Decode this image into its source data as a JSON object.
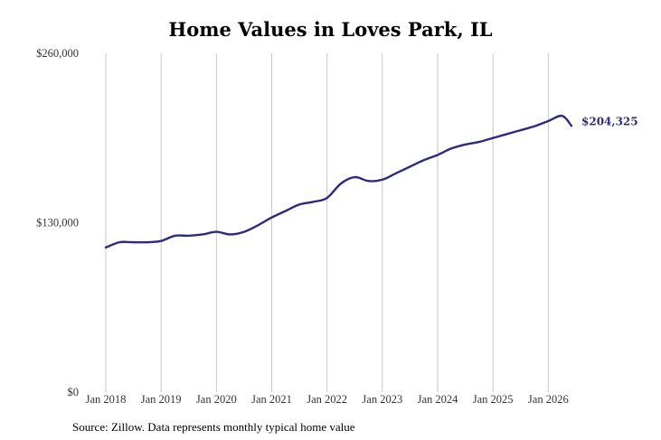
{
  "chart_data": {
    "type": "line",
    "title": "Home Values in Loves Park, IL",
    "y_ticks": [
      "$0",
      "$130,000",
      "$260,000"
    ],
    "y_tick_values": [
      0,
      130000,
      260000
    ],
    "x_ticks": [
      "Jan 2018",
      "Jan 2019",
      "Jan 2020",
      "Jan 2021",
      "Jan 2022",
      "Jan 2023",
      "Jan 2024",
      "Jan 2025",
      "Jan 2026"
    ],
    "ylim": [
      0,
      260000
    ],
    "xlim": [
      2018.0,
      2026.42
    ],
    "grid": "vertical",
    "line_color": "#2d2a7f",
    "end_label": "$204,325",
    "series": [
      {
        "x": [
          2018.0,
          2018.25,
          2018.5,
          2018.75,
          2019.0,
          2019.25,
          2019.5,
          2019.75,
          2020.0,
          2020.25,
          2020.5,
          2020.75,
          2021.0,
          2021.25,
          2021.5,
          2021.75,
          2022.0,
          2022.25,
          2022.5,
          2022.75,
          2023.0,
          2023.25,
          2023.5,
          2023.75,
          2024.0,
          2024.25,
          2024.5,
          2024.75,
          2025.0,
          2025.25,
          2025.5,
          2025.75,
          2026.0,
          2026.25,
          2026.42
        ],
        "y": [
          111000,
          115000,
          115000,
          115000,
          116000,
          120000,
          120000,
          121000,
          123000,
          121000,
          123000,
          128000,
          134000,
          139000,
          144000,
          146000,
          149000,
          160000,
          165000,
          162000,
          163000,
          168000,
          173000,
          178000,
          182000,
          187000,
          190000,
          192000,
          195000,
          198000,
          201000,
          204000,
          208000,
          212000,
          204325
        ]
      }
    ]
  },
  "source": "Source: Zillow. Data represents monthly typical home value"
}
